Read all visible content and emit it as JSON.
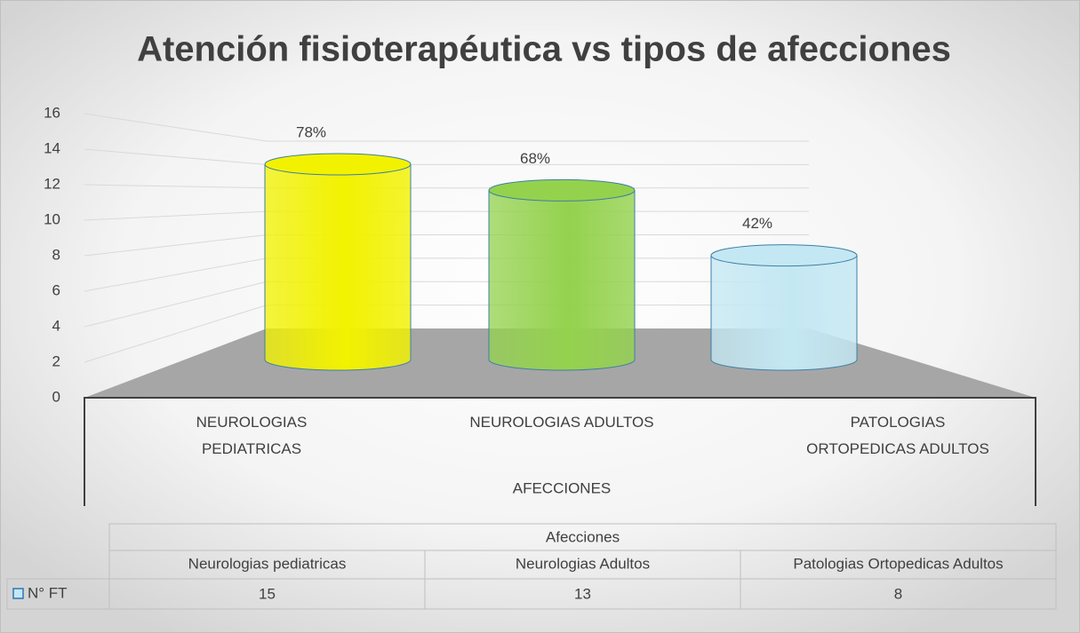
{
  "chart_data": {
    "type": "cylinder",
    "title": "Atención fisioterapéutica vs tipos de afecciones",
    "categories": [
      "NEUROLOGIAS PEDIATRICAS",
      "NEUROLOGIAS ADULTOS",
      "PATOLOGIAS ORTOPEDICAS ADULTOS"
    ],
    "x_label": "AFECCIONES",
    "annotations": [
      "78%",
      "68%",
      "42%"
    ],
    "series": [
      {
        "name": "N° FT",
        "colors": [
          "#f2f200",
          "#94d24e",
          "#c4e8f3"
        ],
        "values": [
          15,
          13,
          8
        ]
      }
    ],
    "ylim": [
      0,
      16
    ],
    "yticks": [
      0,
      2,
      4,
      6,
      8,
      10,
      12,
      14,
      16
    ],
    "grid": true,
    "data_table": {
      "title": "Afecciones",
      "columns": [
        "Neurologias pediatricas",
        "Neurologias Adultos",
        "Patologias Ortopedicas Adultos"
      ]
    }
  }
}
